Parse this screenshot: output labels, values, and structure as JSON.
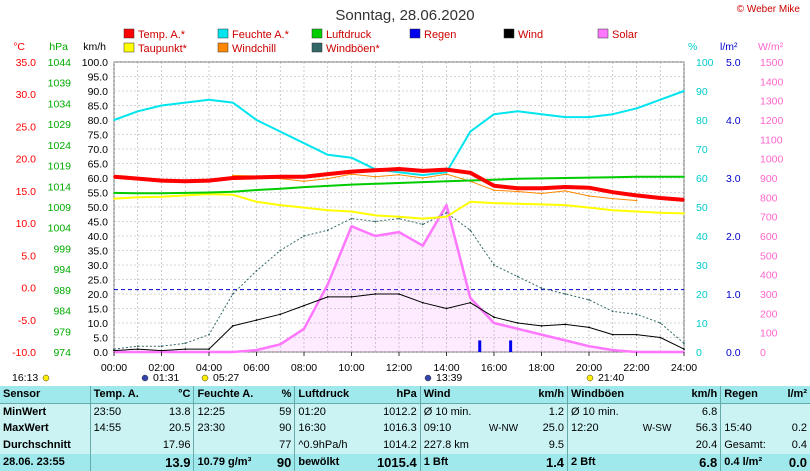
{
  "watermark": "© Weber Mike",
  "chart_data": {
    "type": "line",
    "title": "Sonntag, 28.06.2020",
    "x": [
      "00:00",
      "01:00",
      "02:00",
      "03:00",
      "04:00",
      "05:00",
      "06:00",
      "07:00",
      "08:00",
      "09:00",
      "10:00",
      "11:00",
      "12:00",
      "13:00",
      "14:00",
      "15:00",
      "16:00",
      "17:00",
      "18:00",
      "19:00",
      "20:00",
      "21:00",
      "22:00",
      "23:00",
      "24:00"
    ],
    "x_ticks": [
      "00:00",
      "02:00",
      "04:00",
      "06:00",
      "08:00",
      "10:00",
      "12:00",
      "14:00",
      "16:00",
      "18:00",
      "20:00",
      "22:00",
      "24:00"
    ],
    "xlim": [
      0,
      24
    ],
    "grid": true,
    "legend": [
      {
        "name": "Temp. A.*",
        "color": "#ff0000"
      },
      {
        "name": "Feuchte A.*",
        "color": "#00e5ee"
      },
      {
        "name": "Luftdruck",
        "color": "#00cc00"
      },
      {
        "name": "Regen",
        "color": "#0000ee"
      },
      {
        "name": "Wind",
        "color": "#000000"
      },
      {
        "name": "Solar",
        "color": "#ff77ff"
      },
      {
        "name": "Taupunkt*",
        "color": "#ffff00"
      },
      {
        "name": "Windchill",
        "color": "#ff8800"
      },
      {
        "name": "Windböen*",
        "color": "#336666"
      }
    ],
    "axes": [
      {
        "unit": "°C",
        "color": "#ff0000",
        "ticks": [
          "35.0",
          "30.0",
          "25.0",
          "20.0",
          "15.0",
          "10.0",
          "5.0",
          "0.0",
          "-5.0",
          "-10.0"
        ],
        "range": [
          -10,
          35
        ]
      },
      {
        "unit": "hPa",
        "color": "#00aa00",
        "ticks": [
          "1044",
          "1039",
          "1034",
          "1029",
          "1024",
          "1019",
          "1014",
          "1009",
          "1004",
          "999",
          "994",
          "989",
          "984",
          "979",
          "974"
        ],
        "range": [
          974,
          1044
        ]
      },
      {
        "unit": "km/h",
        "color": "#000000",
        "ticks": [
          "100.0",
          "95.0",
          "90.0",
          "85.0",
          "80.0",
          "75.0",
          "70.0",
          "65.0",
          "60.0",
          "55.0",
          "50.0",
          "45.0",
          "40.0",
          "35.0",
          "30.0",
          "25.0",
          "20.0",
          "15.0",
          "10.0",
          "5.0",
          "0.0"
        ],
        "range": [
          0,
          100
        ]
      },
      {
        "unit": "%",
        "color": "#00cccc",
        "ticks": [
          "100",
          "90",
          "80",
          "70",
          "60",
          "50",
          "40",
          "30",
          "20",
          "10",
          "0"
        ],
        "range": [
          0,
          100
        ]
      },
      {
        "unit": "l/m²",
        "color": "#0000cc",
        "ticks": [
          "5.0",
          "4.0",
          "3.0",
          "2.0",
          "1.0",
          "0.0"
        ],
        "range": [
          0,
          5
        ]
      },
      {
        "unit": "W/m²",
        "color": "#ff66cc",
        "ticks": [
          "1500",
          "1400",
          "1300",
          "1200",
          "1100",
          "1000",
          "900",
          "800",
          "700",
          "600",
          "500",
          "400",
          "300",
          "200",
          "100",
          "0"
        ],
        "range": [
          0,
          1500
        ]
      }
    ],
    "series": [
      {
        "name": "Temp. A.*",
        "axis": "°C",
        "color": "#ff0000",
        "values": [
          17.2,
          16.9,
          16.6,
          16.5,
          16.6,
          17.0,
          17.1,
          17.2,
          17.2,
          17.6,
          18.0,
          18.2,
          18.4,
          18.1,
          18.3,
          17.8,
          15.8,
          15.4,
          15.4,
          15.6,
          15.5,
          14.8,
          14.3,
          13.9,
          13.6
        ]
      },
      {
        "name": "Feuchte A.*",
        "axis": "%",
        "color": "#00e5ee",
        "values": [
          80,
          83,
          85,
          86,
          87,
          86,
          80,
          76,
          72,
          68,
          67,
          63,
          62,
          61,
          62,
          76,
          82,
          83,
          82,
          81,
          81,
          82,
          84,
          87,
          90
        ]
      },
      {
        "name": "Luftdruck",
        "axis": "hPa",
        "color": "#00cc00",
        "values": [
          1012.4,
          1012.3,
          1012.3,
          1012.4,
          1012.5,
          1012.7,
          1013.1,
          1013.4,
          1013.8,
          1014.1,
          1014.4,
          1014.6,
          1014.8,
          1015.0,
          1015.2,
          1015.4,
          1015.6,
          1015.8,
          1015.9,
          1016.0,
          1016.1,
          1016.2,
          1016.3,
          1016.3,
          1016.3
        ]
      },
      {
        "name": "Taupunkt*",
        "axis": "°C",
        "color": "#ffff00",
        "values": [
          13.8,
          14.0,
          14.1,
          14.3,
          14.5,
          14.4,
          13.3,
          12.8,
          12.4,
          12.0,
          11.8,
          11.2,
          11.0,
          10.7,
          11.0,
          13.3,
          13.1,
          13.0,
          12.9,
          12.8,
          12.4,
          12.0,
          11.8,
          11.6,
          11.5
        ]
      },
      {
        "name": "Windchill",
        "axis": "°C",
        "color": "#ff8800",
        "values": [
          null,
          null,
          null,
          null,
          null,
          17.4,
          17.3,
          16.9,
          16.5,
          16.9,
          17.6,
          17.2,
          17.5,
          17.0,
          17.6,
          16.5,
          15.1,
          14.9,
          14.6,
          15.0,
          14.2,
          13.8,
          13.5,
          null,
          null
        ]
      },
      {
        "name": "Wind",
        "axis": "km/h",
        "color": "#000000",
        "values": [
          0.5,
          1.0,
          0.5,
          1.0,
          1.0,
          9.0,
          11.0,
          13.0,
          16.0,
          19.0,
          19.0,
          20.0,
          20.0,
          17.0,
          15.0,
          17.0,
          12.0,
          10.0,
          9.0,
          9.5,
          8.5,
          6.0,
          6.0,
          5.0,
          1.0
        ]
      },
      {
        "name": "Windböen*",
        "axis": "km/h",
        "color": "#336666",
        "values": [
          1.0,
          2.0,
          2.0,
          3.0,
          6.0,
          20.0,
          28.0,
          35.0,
          40.0,
          42.0,
          46.0,
          45.0,
          46.0,
          44.0,
          48.0,
          42.0,
          30.0,
          26.0,
          22.0,
          20.0,
          18.0,
          14.0,
          13.0,
          10.0,
          3.0
        ]
      },
      {
        "name": "Solar",
        "axis": "W/m²",
        "color": "#ff77ff",
        "values": [
          0,
          0,
          0,
          0,
          0,
          0,
          10,
          40,
          120,
          350,
          650,
          600,
          620,
          550,
          760,
          280,
          150,
          120,
          90,
          60,
          30,
          10,
          0,
          0,
          0
        ]
      }
    ],
    "rain_bars": [
      {
        "x": 15.4,
        "value": 0.2
      },
      {
        "x": 16.7,
        "value": 0.2
      }
    ],
    "wind_pressure_ref_kmh": 21.5,
    "events": [
      {
        "label": "16:13",
        "type": "sunrise_moon"
      },
      {
        "label": "01:31",
        "type": "moon"
      },
      {
        "label": "05:27",
        "type": "sunrise"
      },
      {
        "label": "13:39",
        "type": "moon"
      },
      {
        "label": "21:40",
        "type": "sunset"
      }
    ]
  },
  "table": {
    "headers": [
      "Sensor",
      "Temp. A.",
      "°C",
      "Feuchte A.",
      "%",
      "Luftdruck",
      "hPa",
      "Wind",
      "km/h",
      "Windböen",
      "km/h",
      "Regen",
      "l/m²"
    ],
    "rows": [
      {
        "label": "MinWert",
        "t_time": "23:50",
        "t_val": "13.8",
        "h_time": "12:25",
        "h_val": "59",
        "p_time": "01:20",
        "p_val": "1012.2",
        "w_a": "Ø 10 min.",
        "w_b": "",
        "w_val": "1.2",
        "g_a": "Ø 10 min.",
        "g_b": "",
        "g_val": "6.8",
        "r_a": "",
        "r_val": ""
      },
      {
        "label": "MaxWert",
        "t_time": "14:55",
        "t_val": "20.5",
        "h_time": "23:30",
        "h_val": "90",
        "p_time": "16:30",
        "p_val": "1016.3",
        "w_a": "09:10",
        "w_b": "W-NW",
        "w_val": "25.0",
        "g_a": "12:20",
        "g_b": "W-SW",
        "g_val": "56.3",
        "r_a": "15:40",
        "r_val": "0.2"
      },
      {
        "label": "Durchschnitt",
        "t_time": "",
        "t_val": "17.96",
        "h_time": "",
        "h_val": "77",
        "p_time": "^0.9hPa/h",
        "p_val": "1014.2",
        "w_a": "227.8 km",
        "w_b": "",
        "w_val": "9.5",
        "g_a": "",
        "g_b": "",
        "g_val": "20.4",
        "r_a": "Gesamt:",
        "r_val": "0.4"
      },
      {
        "label": "28.06. 23:55",
        "t_time": "",
        "t_val": "13.9",
        "h_time": "10.79 g/m³",
        "h_val": "90",
        "p_time": "bewölkt",
        "p_val": "1015.4",
        "w_a": "1 Bft",
        "w_b": "",
        "w_val": "1.4",
        "g_a": "2 Bft",
        "g_b": "",
        "g_val": "6.8",
        "r_a": "0.4 l/m²",
        "r_val": "0.0"
      }
    ]
  }
}
